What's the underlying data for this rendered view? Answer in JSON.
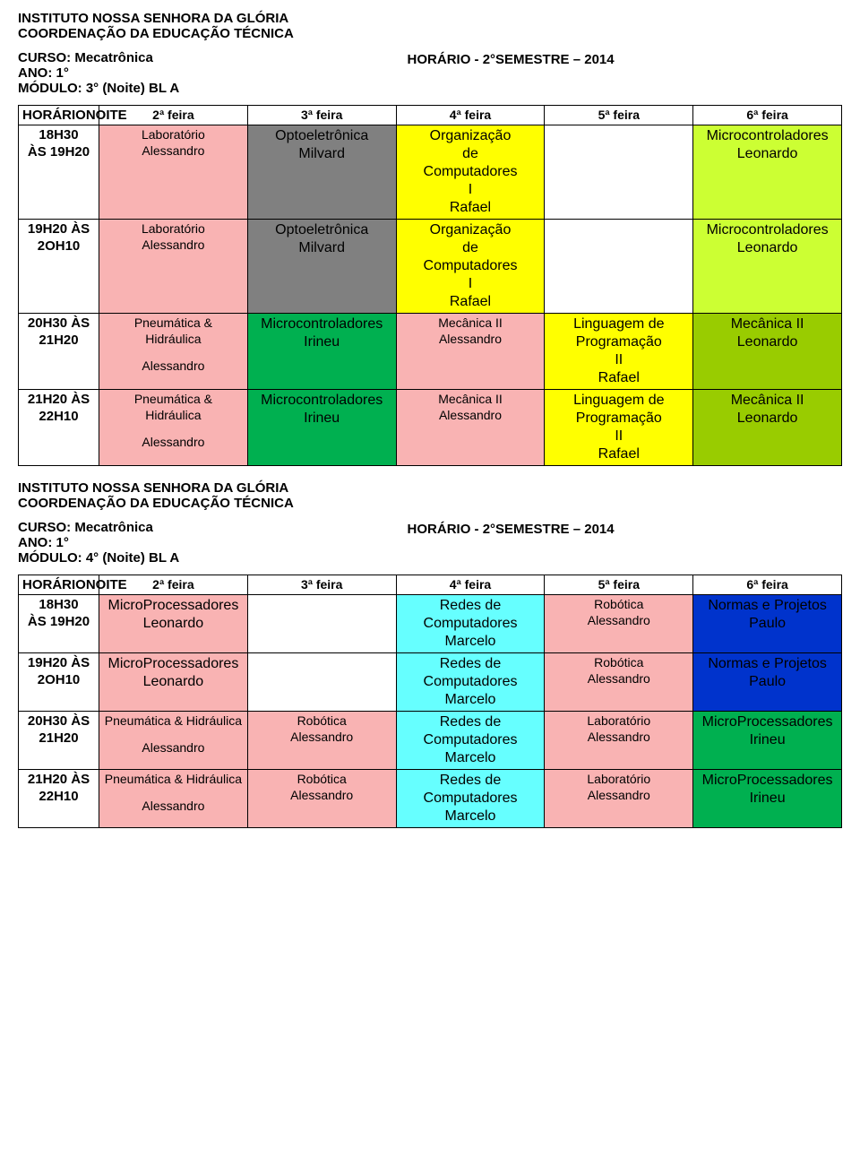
{
  "institution": {
    "line1": "INSTITUTO NOSSA SENHORA DA GLÓRIA",
    "line2": "COORDENAÇÃO DA EDUCAÇÃO TÉCNICA"
  },
  "semester_title": "HORÁRIO - 2°SEMESTRE – 2014",
  "timecol_header": {
    "l1": "HORÁRIO",
    "l2": "NOITE"
  },
  "columns": {
    "c2": "2ª feira",
    "c3": "3ª feira",
    "c4": "4ª feira",
    "c5": "5ª feira",
    "c6": "6ª feira"
  },
  "times": {
    "t1": {
      "a": "18H30",
      "b": "ÀS 19H20"
    },
    "t2": {
      "a": "19H20 ÀS",
      "b": "2OH10"
    },
    "t3": {
      "a": "20H30 ÀS",
      "b": "21H20"
    },
    "t4": {
      "a": "21H20 ÀS",
      "b": "22H10"
    }
  },
  "colors": {
    "pink": "#f9b3b3",
    "gray": "#808080",
    "yellow": "#ffff00",
    "lime": "#ccff33",
    "green": "#00b050",
    "olive": "#99cc00",
    "cyan": "#66ffff",
    "blue": "#0033cc",
    "white": "#ffffff"
  },
  "schedules": [
    {
      "course": {
        "l1": "CURSO: Mecatrônica",
        "l2": "ANO: 1°",
        "l3": "MÓDULO: 3°  (Noite)  BL A"
      },
      "rows": [
        {
          "time": "t1",
          "cells": [
            {
              "bg": "pink",
              "lines": [
                "Laboratório",
                "Alessandro"
              ]
            },
            {
              "bg": "gray",
              "lines": [
                "Optoeletrônica",
                "Milvard"
              ],
              "big": [
                true,
                true
              ]
            },
            {
              "bg": "yellow",
              "lines": [
                "Organização",
                "de",
                "Computadores",
                "I",
                "Rafael"
              ],
              "big": [
                true,
                true,
                true,
                true,
                true
              ]
            },
            {
              "bg": "white",
              "lines": []
            },
            {
              "bg": "lime",
              "lines": [
                "Microcontroladores",
                "Leonardo"
              ],
              "big": [
                true,
                true
              ]
            }
          ]
        },
        {
          "time": "t2",
          "cells": [
            {
              "bg": "pink",
              "lines": [
                "Laboratório",
                "Alessandro"
              ]
            },
            {
              "bg": "gray",
              "lines": [
                "Optoeletrônica",
                "Milvard"
              ],
              "big": [
                true,
                true
              ]
            },
            {
              "bg": "yellow",
              "lines": [
                "Organização",
                "de",
                "Computadores",
                "I",
                "Rafael"
              ],
              "big": [
                true,
                true,
                true,
                true,
                true
              ]
            },
            {
              "bg": "white",
              "lines": []
            },
            {
              "bg": "lime",
              "lines": [
                "Microcontroladores",
                "Leonardo"
              ],
              "big": [
                true,
                true
              ]
            }
          ]
        },
        {
          "time": "t3",
          "cells": [
            {
              "bg": "pink",
              "lines": [
                "Pneumática &",
                "Hidráulica",
                "",
                "Alessandro"
              ]
            },
            {
              "bg": "green",
              "lines": [
                "Microcontroladores",
                "Irineu"
              ],
              "big": [
                true,
                true
              ]
            },
            {
              "bg": "pink",
              "lines": [
                "Mecânica II",
                "Alessandro"
              ]
            },
            {
              "bg": "yellow",
              "lines": [
                "Linguagem de",
                "Programação",
                "II",
                "Rafael"
              ],
              "big": [
                true,
                true,
                true,
                true
              ]
            },
            {
              "bg": "olive",
              "lines": [
                "Mecânica II",
                "Leonardo"
              ],
              "big": [
                true,
                true
              ]
            }
          ]
        },
        {
          "time": "t4",
          "cells": [
            {
              "bg": "pink",
              "lines": [
                "Pneumática &",
                "Hidráulica",
                "",
                "Alessandro"
              ]
            },
            {
              "bg": "green",
              "lines": [
                "Microcontroladores",
                "Irineu"
              ],
              "big": [
                true,
                true
              ]
            },
            {
              "bg": "pink",
              "lines": [
                "Mecânica II",
                "Alessandro"
              ]
            },
            {
              "bg": "yellow",
              "lines": [
                "Linguagem de",
                "Programação",
                "II",
                "Rafael"
              ],
              "big": [
                true,
                true,
                true,
                true
              ]
            },
            {
              "bg": "olive",
              "lines": [
                "Mecânica II",
                "Leonardo"
              ],
              "big": [
                true,
                true
              ]
            }
          ]
        }
      ]
    },
    {
      "course": {
        "l1": "CURSO: Mecatrônica",
        "l2": "ANO: 1°",
        "l3": "MÓDULO: 4°  (Noite)  BL A"
      },
      "rows": [
        {
          "time": "t1",
          "cells": [
            {
              "bg": "pink",
              "lines": [
                "MicroProcessadores",
                "Leonardo"
              ],
              "big": [
                true,
                true
              ]
            },
            {
              "bg": "white",
              "lines": []
            },
            {
              "bg": "cyan",
              "lines": [
                "Redes de",
                "Computadores",
                "Marcelo"
              ],
              "big": [
                true,
                true,
                true
              ]
            },
            {
              "bg": "pink",
              "lines": [
                "Robótica",
                "Alessandro"
              ]
            },
            {
              "bg": "blue",
              "lines": [
                "Normas e Projetos",
                "Paulo"
              ],
              "big": [
                true,
                true
              ]
            }
          ]
        },
        {
          "time": "t2",
          "cells": [
            {
              "bg": "pink",
              "lines": [
                "MicroProcessadores",
                "Leonardo"
              ],
              "big": [
                true,
                true
              ]
            },
            {
              "bg": "white",
              "lines": []
            },
            {
              "bg": "cyan",
              "lines": [
                "Redes de",
                "Computadores",
                "Marcelo"
              ],
              "big": [
                true,
                true,
                true
              ]
            },
            {
              "bg": "pink",
              "lines": [
                "Robótica",
                "Alessandro"
              ]
            },
            {
              "bg": "blue",
              "lines": [
                "Normas e Projetos",
                "Paulo"
              ],
              "big": [
                true,
                true
              ]
            }
          ]
        },
        {
          "time": "t3",
          "cells": [
            {
              "bg": "pink",
              "lines": [
                "Pneumática & Hidráulica",
                "",
                "Alessandro"
              ]
            },
            {
              "bg": "pink",
              "lines": [
                "Robótica",
                "Alessandro"
              ]
            },
            {
              "bg": "cyan",
              "lines": [
                "Redes de",
                "Computadores",
                "Marcelo"
              ],
              "big": [
                true,
                true,
                true
              ]
            },
            {
              "bg": "pink",
              "lines": [
                "Laboratório",
                "Alessandro"
              ]
            },
            {
              "bg": "green",
              "lines": [
                "MicroProcessadores",
                "Irineu"
              ],
              "big": [
                true,
                true
              ]
            }
          ]
        },
        {
          "time": "t4",
          "cells": [
            {
              "bg": "pink",
              "lines": [
                "Pneumática & Hidráulica",
                "",
                "Alessandro"
              ]
            },
            {
              "bg": "pink",
              "lines": [
                "Robótica",
                "Alessandro"
              ]
            },
            {
              "bg": "cyan",
              "lines": [
                "Redes de",
                "Computadores",
                "Marcelo"
              ],
              "big": [
                true,
                true,
                true
              ]
            },
            {
              "bg": "pink",
              "lines": [
                "Laboratório",
                "Alessandro"
              ]
            },
            {
              "bg": "green",
              "lines": [
                "MicroProcessadores",
                "Irineu"
              ],
              "big": [
                true,
                true
              ]
            }
          ]
        }
      ]
    }
  ]
}
